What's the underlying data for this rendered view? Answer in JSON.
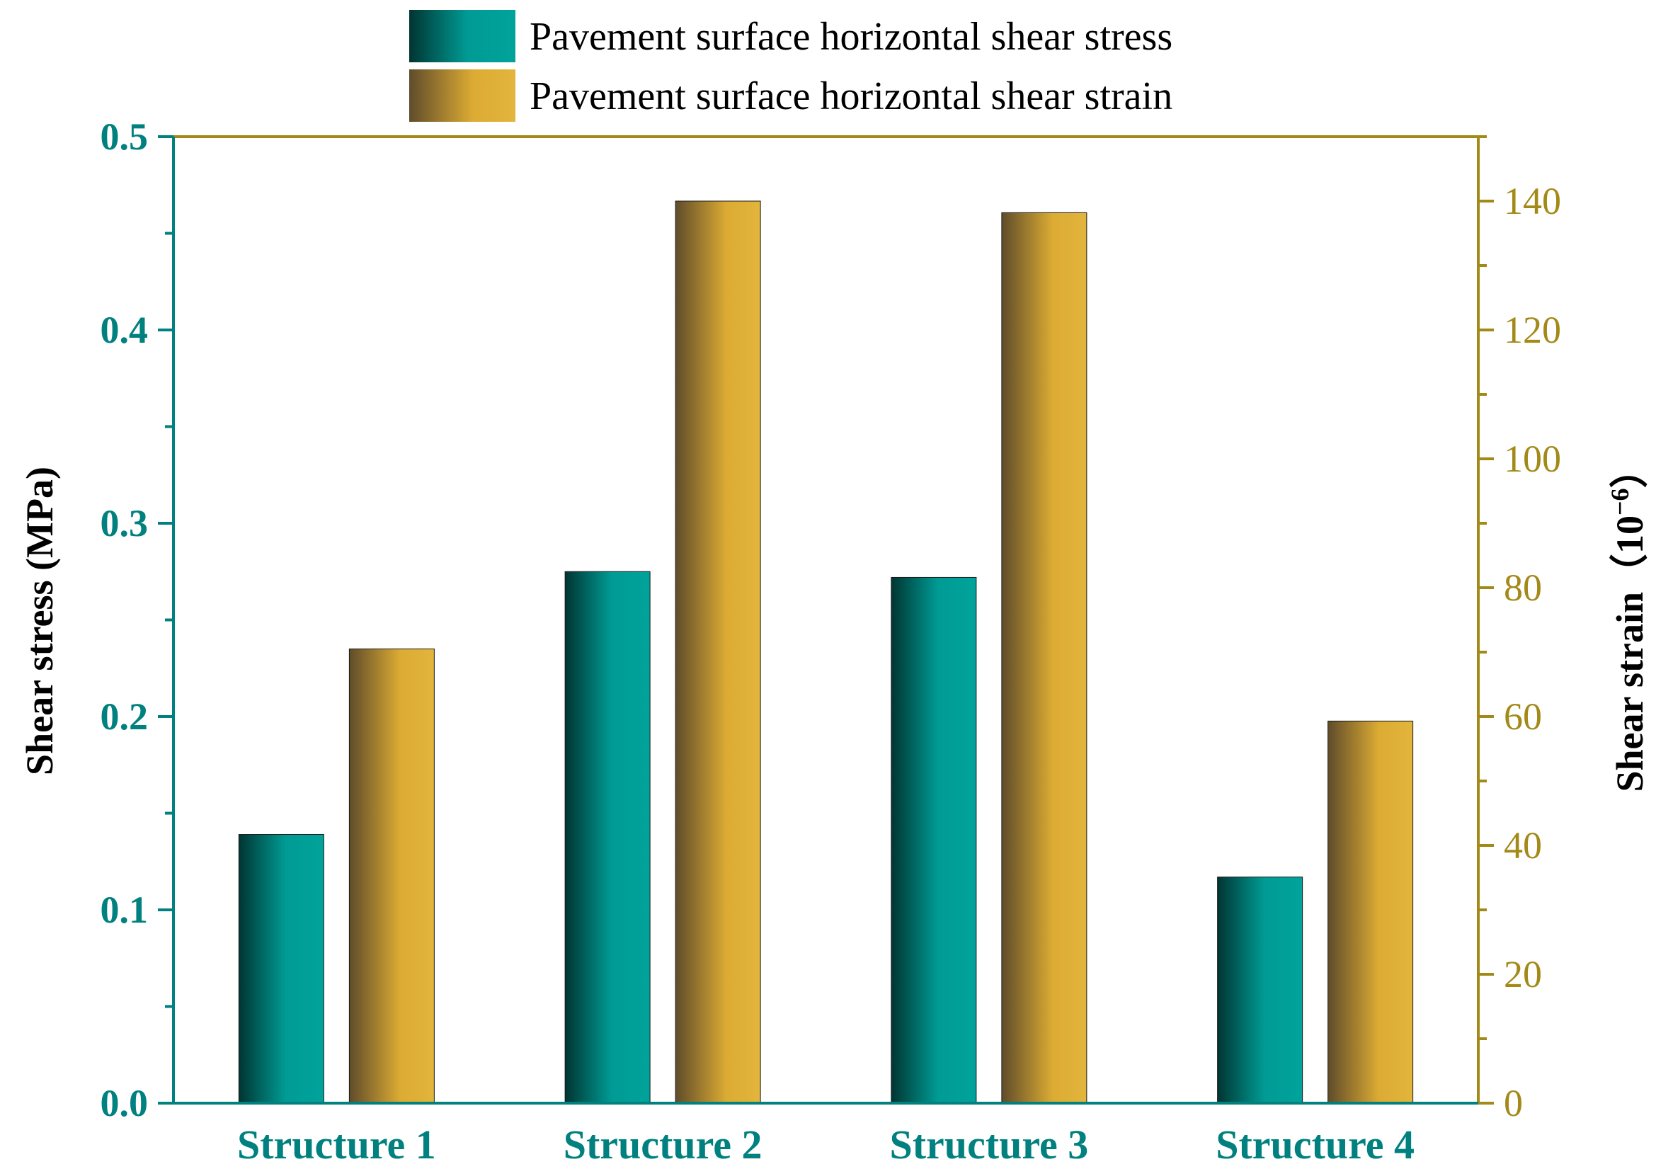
{
  "chart_data": {
    "type": "bar",
    "categories": [
      "Structure 1",
      "Structure 2",
      "Structure 3",
      "Structure 4"
    ],
    "series": [
      {
        "name": "Pavement surface horizontal shear stress",
        "axis": "left",
        "values": [
          0.139,
          0.275,
          0.272,
          0.117
        ],
        "color": "#009b94"
      },
      {
        "name": "Pavement surface horizontal shear strain",
        "axis": "right",
        "values": [
          70.5,
          140.0,
          138.2,
          59.3
        ],
        "color": "#dcab33"
      }
    ],
    "ylabel_left": "Shear stress (MPa)",
    "ylim_left": [
      0,
      0.5
    ],
    "yticks_left": [
      "0.0",
      "0.1",
      "0.2",
      "0.3",
      "0.4",
      "0.5"
    ],
    "ylabel_right": "Shear strain（10",
    "ylabel_right_sup": "−6",
    "ylabel_right_close": "）",
    "ylim_right": [
      0,
      150
    ],
    "yticks_right": [
      "0",
      "20",
      "40",
      "60",
      "80",
      "100",
      "120",
      "140"
    ],
    "grid": false,
    "legend_position": "top-center",
    "colors": {
      "left_axis": "#00817f",
      "right_axis": "#a38a18",
      "top_frame": "#a38a18"
    }
  }
}
